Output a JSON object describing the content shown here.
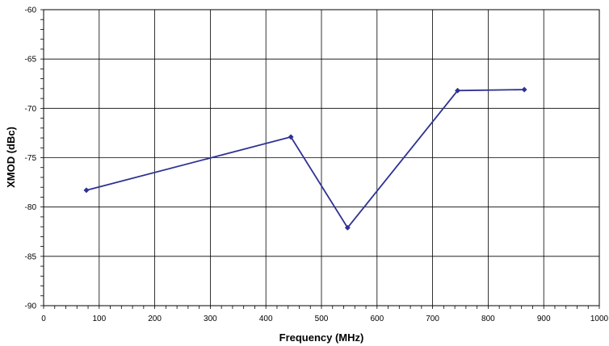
{
  "chart_data": {
    "type": "line",
    "title": "",
    "xlabel": "Frequency (MHz)",
    "ylabel": "XMOD (dBc)",
    "xlim": [
      0,
      1000
    ],
    "ylim": [
      -90,
      -60
    ],
    "x_ticks": [
      0,
      100,
      200,
      300,
      400,
      500,
      600,
      700,
      800,
      900,
      1000
    ],
    "y_ticks": [
      -60,
      -65,
      -70,
      -75,
      -80,
      -85,
      -90
    ],
    "grid": true,
    "legend": "none",
    "series": [
      {
        "x": [
          77,
          445,
          547,
          745,
          865
        ],
        "y": [
          -78.3,
          -72.9,
          -82.1,
          -68.2,
          -68.1
        ]
      }
    ],
    "colors": {
      "series": "#2e3192",
      "grid": "#000000",
      "background": "#ffffff"
    }
  }
}
